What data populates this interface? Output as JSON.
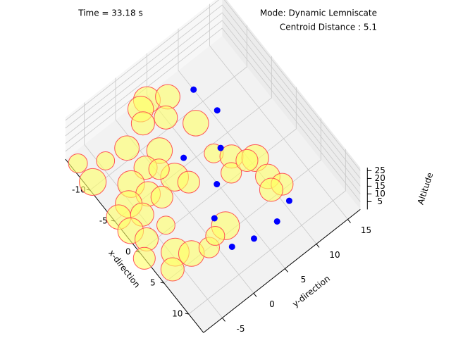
{
  "chart_data": {
    "type": "scatter3d",
    "title": "Time = 33.18 s",
    "mode_text": "Mode: Dynamic Lemniscate",
    "distance_text": "Centroid Distance : 5.1",
    "xlabel": "x-direction",
    "ylabel": "y-direction",
    "zlabel": "Altitude",
    "xlim": [
      -15,
      13
    ],
    "ylim": [
      -8,
      17
    ],
    "zlim": [
      0,
      27
    ],
    "xticks": [
      -10,
      -5,
      0,
      5,
      10
    ],
    "yticks": [
      -5,
      0,
      5,
      10,
      15
    ],
    "zticks": [
      5,
      10,
      15,
      20,
      25
    ],
    "grid": true,
    "obstacles": {
      "color": "#ffff66",
      "edge_color": "#ff5555",
      "x": [
        -13.6,
        -10.6,
        -11.7,
        -14.5,
        -14.1,
        -13.2,
        -12.5,
        -11.3,
        -8.4,
        -11.3,
        -8.5,
        -7.9,
        -4.7,
        -3.1,
        -7.4,
        -5.1,
        -3.7,
        -5.6,
        -3.5,
        -5.1,
        -2.8,
        -0.7,
        -0.6,
        2.8,
        4.2,
        1.0,
        4.3,
        5.0,
        4.1,
        -4.0,
        -2.3,
        -0.3,
        2.5,
        4.4,
        4.1,
        -0.7,
        -0.7,
        -6.7,
        4.3
      ],
      "y": [
        -7.1,
        -7.1,
        -4.2,
        4.6,
        3.3,
        6.9,
        2.4,
        5.1,
        7.6,
        -1.1,
        1.9,
        -0.8,
        1.3,
        2.3,
        -3.5,
        -2.6,
        -1.5,
        -5.3,
        -4.8,
        -7.3,
        -7.2,
        -6.3,
        -3.3,
        -4.5,
        -3.0,
        -8.0,
        -6.1,
        -0.8,
        2.5,
        7.0,
        8.5,
        10.7,
        10.5,
        11.3,
        9.8,
        7.2,
        9.7,
        0.4,
        0.7
      ],
      "sizes": [
        600,
        1200,
        550,
        1200,
        1100,
        1000,
        900,
        900,
        1100,
        1000,
        1100,
        900,
        1300,
        800,
        1200,
        1000,
        800,
        1200,
        900,
        1000,
        1100,
        900,
        550,
        1300,
        1100,
        800,
        900,
        700,
        1300,
        600,
        900,
        1200,
        1000,
        800,
        900,
        700,
        800,
        700,
        600
      ]
    },
    "agents": {
      "color": "#0000ff",
      "x": [
        -11.9,
        -8.0,
        -5.9,
        -4.0,
        -0.7,
        2.5,
        6.7,
        7.6,
        7.7,
        6.6
      ],
      "y": [
        10.0,
        10.7,
        3.7,
        8.1,
        4.9,
        2.0,
        1.5,
        4.3,
        7.9,
        10.7
      ]
    }
  }
}
